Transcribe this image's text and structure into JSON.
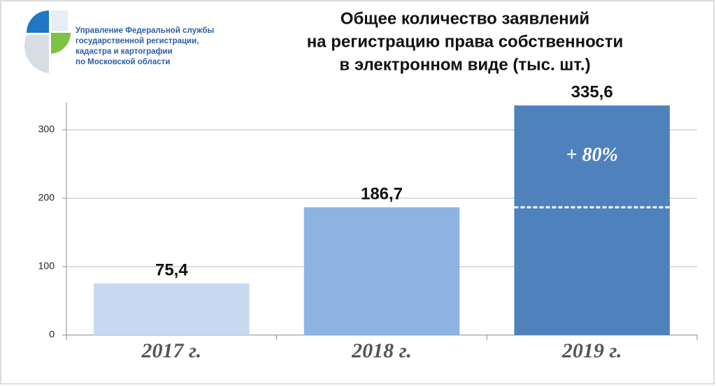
{
  "logo": {
    "lines": [
      "Управление Федеральной службы",
      "государственной регистрации,",
      "кадастра и картографии",
      "по Московской области"
    ]
  },
  "chart_data": {
    "type": "bar",
    "title": [
      "Общее количество заявлений",
      "на регистрацию права собственности",
      "в электронном виде (тыс. шт.)"
    ],
    "categories": [
      "2017 г.",
      "2018 г.",
      "2019 г."
    ],
    "values": [
      75.4,
      186.7,
      335.6
    ],
    "value_labels": [
      "75,4",
      "186,7",
      "335,6"
    ],
    "colors": [
      "#c6d9f0",
      "#8db3e2",
      "#4f81bd"
    ],
    "annotation": "+ 80%",
    "ylim": [
      0,
      340
    ],
    "yticks": [
      0,
      100,
      200,
      300
    ],
    "grid": true
  }
}
